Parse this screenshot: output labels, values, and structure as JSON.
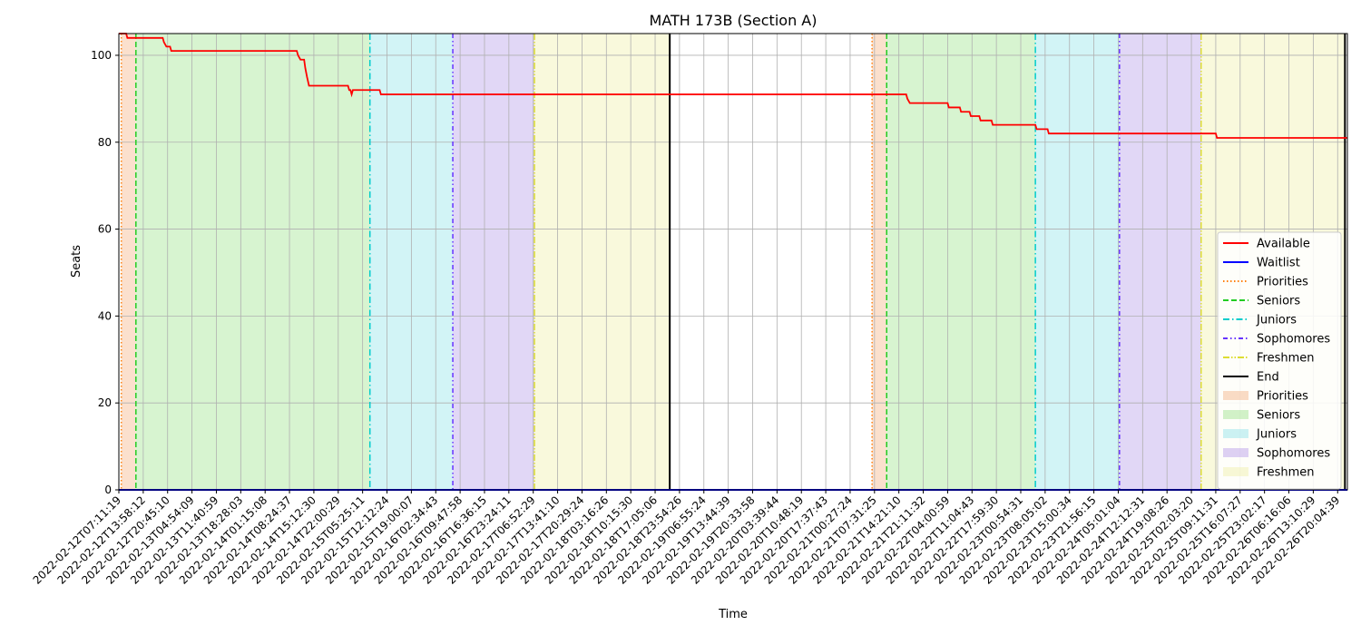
{
  "chart_data": {
    "type": "line",
    "title": "MATH 173B (Section A)",
    "xlabel": "Time",
    "ylabel": "Seats",
    "ylim": [
      0,
      105
    ],
    "yticks": [
      0,
      20,
      40,
      60,
      80,
      100
    ],
    "x_tick_labels": [
      "2022-02-12T07:11:19",
      "2022-02-12T13:58:12",
      "2022-02-12T20:45:10",
      "2022-02-13T04:54:09",
      "2022-02-13T11:40:59",
      "2022-02-13T18:28:03",
      "2022-02-14T01:15:08",
      "2022-02-14T08:24:37",
      "2022-02-14T15:12:30",
      "2022-02-14T22:00:29",
      "2022-02-15T05:25:11",
      "2022-02-15T12:12:24",
      "2022-02-15T19:00:07",
      "2022-02-16T02:34:43",
      "2022-02-16T09:47:58",
      "2022-02-16T16:36:15",
      "2022-02-16T23:24:11",
      "2022-02-17T06:52:29",
      "2022-02-17T13:41:10",
      "2022-02-17T20:29:24",
      "2022-02-18T03:16:26",
      "2022-02-18T10:15:30",
      "2022-02-18T17:05:06",
      "2022-02-18T23:54:26",
      "2022-02-19T06:55:24",
      "2022-02-19T13:44:39",
      "2022-02-19T20:33:58",
      "2022-02-20T03:39:44",
      "2022-02-20T10:48:19",
      "2022-02-20T17:37:43",
      "2022-02-21T00:27:24",
      "2022-02-21T07:31:25",
      "2022-02-21T14:21:10",
      "2022-02-21T21:11:32",
      "2022-02-22T04:00:59",
      "2022-02-22T11:04:43",
      "2022-02-22T17:59:30",
      "2022-02-23T00:54:31",
      "2022-02-23T08:05:02",
      "2022-02-23T15:00:34",
      "2022-02-23T21:56:15",
      "2022-02-24T05:01:04",
      "2022-02-24T12:12:31",
      "2022-02-24T19:08:26",
      "2022-02-25T02:03:20",
      "2022-02-25T09:11:31",
      "2022-02-25T16:07:27",
      "2022-02-25T23:02:17",
      "2022-02-26T06:16:06",
      "2022-02-26T13:10:29",
      "2022-02-26T20:04:39"
    ],
    "x_range": [
      0,
      50.4
    ],
    "series": [
      {
        "name": "Available",
        "color": "#ff0000",
        "style": "solid",
        "points": [
          [
            0,
            105
          ],
          [
            0.3,
            105
          ],
          [
            0.35,
            104
          ],
          [
            1.8,
            104
          ],
          [
            1.85,
            103
          ],
          [
            1.95,
            102
          ],
          [
            2.1,
            102
          ],
          [
            2.15,
            101
          ],
          [
            7.3,
            101
          ],
          [
            7.35,
            100
          ],
          [
            7.45,
            99
          ],
          [
            7.6,
            99
          ],
          [
            7.65,
            97
          ],
          [
            7.72,
            95
          ],
          [
            7.8,
            93
          ],
          [
            9.4,
            93
          ],
          [
            9.45,
            92
          ],
          [
            9.5,
            92
          ],
          [
            9.55,
            91
          ],
          [
            9.6,
            92
          ],
          [
            10.7,
            92
          ],
          [
            10.75,
            91
          ],
          [
            32.3,
            91
          ],
          [
            32.35,
            90
          ],
          [
            32.45,
            89
          ],
          [
            34.0,
            89
          ],
          [
            34.05,
            88
          ],
          [
            34.5,
            88
          ],
          [
            34.55,
            87
          ],
          [
            34.9,
            87
          ],
          [
            34.95,
            86
          ],
          [
            35.3,
            86
          ],
          [
            35.35,
            85
          ],
          [
            35.8,
            85
          ],
          [
            35.85,
            84
          ],
          [
            37.6,
            84
          ],
          [
            37.65,
            83
          ],
          [
            38.1,
            83
          ],
          [
            38.15,
            82
          ],
          [
            45.0,
            82
          ],
          [
            45.05,
            81
          ],
          [
            50.4,
            81
          ]
        ]
      },
      {
        "name": "Waitlist",
        "color": "#0000ff",
        "style": "solid",
        "points": [
          [
            0,
            0
          ],
          [
            50.4,
            0
          ]
        ]
      }
    ],
    "period_lines": [
      {
        "name": "Priorities",
        "color": "#ff7f0e",
        "style": "dotted",
        "x": [
          0.1,
          30.9
        ]
      },
      {
        "name": "Seniors",
        "color": "#22cc22",
        "style": "dashed",
        "x": [
          0.7,
          31.5
        ]
      },
      {
        "name": "Juniors",
        "color": "#00cccc",
        "style": "dashdot",
        "x": [
          10.3,
          37.6
        ]
      },
      {
        "name": "Sophomores",
        "color": "#6633ff",
        "style": "dashdotdot",
        "x": [
          13.7,
          41.05
        ]
      },
      {
        "name": "Freshmen",
        "color": "#dddd33",
        "style": "dashdotdot2",
        "x": [
          17.05,
          44.4
        ]
      },
      {
        "name": "End",
        "color": "#000000",
        "style": "solid",
        "x": [
          22.6,
          50.3
        ]
      }
    ],
    "shaded_regions": [
      {
        "name": "Priorities",
        "color": "#f4b183",
        "spans": [
          [
            0.1,
            0.7
          ],
          [
            30.9,
            31.5
          ]
        ]
      },
      {
        "name": "Seniors",
        "color": "#9be38a",
        "spans": [
          [
            0.7,
            10.3
          ],
          [
            31.5,
            37.6
          ]
        ]
      },
      {
        "name": "Juniors",
        "color": "#8ee3e8",
        "spans": [
          [
            10.3,
            13.7
          ],
          [
            37.6,
            41.05
          ]
        ]
      },
      {
        "name": "Sophomores",
        "color": "#b59ae8",
        "spans": [
          [
            13.7,
            17.05
          ],
          [
            41.05,
            44.4
          ]
        ]
      },
      {
        "name": "Freshmen",
        "color": "#f0f0a8",
        "spans": [
          [
            17.05,
            22.6
          ],
          [
            44.4,
            50.3
          ]
        ]
      }
    ],
    "grid": true,
    "legend_position": "right"
  }
}
